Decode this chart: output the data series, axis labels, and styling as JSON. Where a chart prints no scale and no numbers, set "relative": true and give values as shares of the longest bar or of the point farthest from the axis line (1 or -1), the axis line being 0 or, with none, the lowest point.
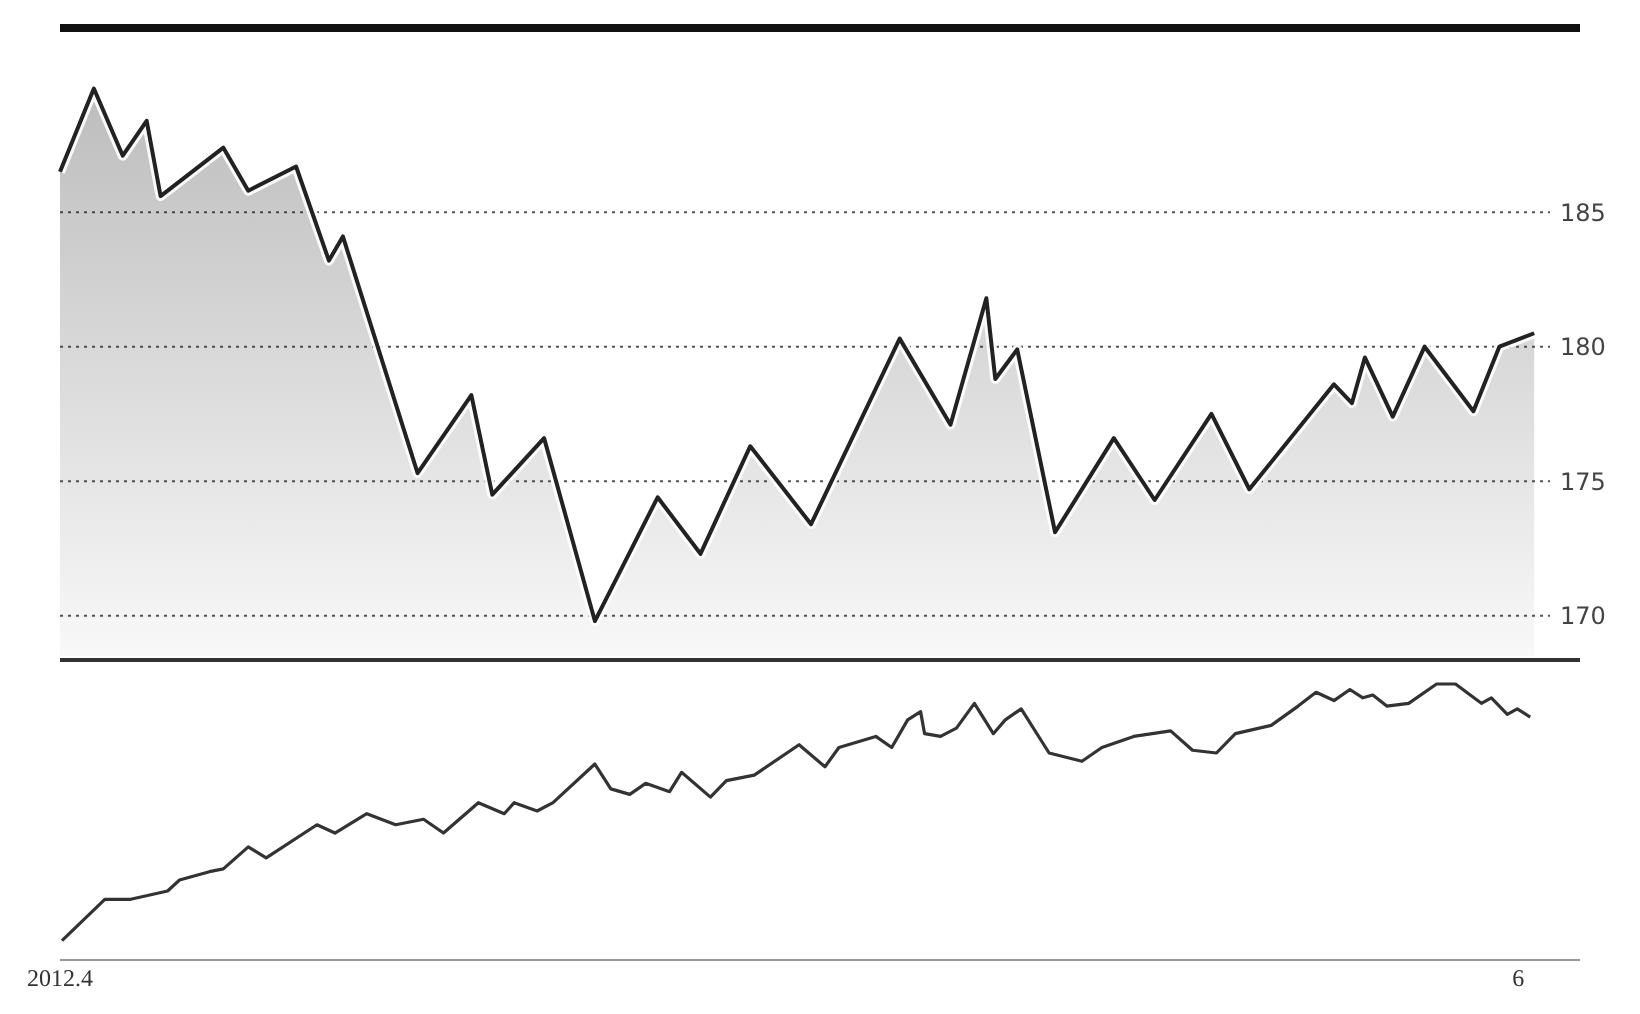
{
  "chart_data": [
    {
      "type": "area",
      "xlim": [
        "2012-04-01",
        "2012-06-03T14:00"
      ],
      "ylim": [
        168.5,
        191.7
      ],
      "yticks": [
        170,
        175,
        180,
        185
      ],
      "grid": "y",
      "tick_labels": "y",
      "x": [
        "2012-04-01T00:00",
        "2012-04-02T10:00",
        "2012-04-03T15:00",
        "2012-04-04T15:00",
        "2012-04-05T05:00",
        "2012-04-07T20:00",
        "2012-04-08T21:00",
        "2012-04-10T21:00",
        "2012-04-12T06:00",
        "2012-04-12T20:00",
        "2012-04-15T23:00",
        "2012-04-18T05:00",
        "2012-04-19T02:00",
        "2012-04-21T06:00",
        "2012-04-23T09:00",
        "2012-04-26T00:00",
        "2012-04-27T19:00",
        "2012-04-29T21:00",
        "2012-05-02T10:00",
        "2012-05-06T03:00",
        "2012-05-08T06:00",
        "2012-05-09T18:00",
        "2012-05-10T03:00",
        "2012-05-11T01:00",
        "2012-05-12T15:00",
        "2012-05-15T02:00",
        "2012-05-16T19:00",
        "2012-05-19T04:00",
        "2012-05-20T18:00",
        "2012-05-24T07:00",
        "2012-05-25T01:00",
        "2012-05-25T14:00",
        "2012-05-26T18:00",
        "2012-05-28T02:00",
        "2012-05-30T03:00",
        "2012-05-31T05:00",
        "2012-06-01T16:00"
      ],
      "series": [
        {
          "color": "#222222",
          "values": [
            186.5,
            189.6,
            187.1,
            188.4,
            185.6,
            187.4,
            185.8,
            186.7,
            183.2,
            184.1,
            175.3,
            178.2,
            174.5,
            176.6,
            169.8,
            174.4,
            172.3,
            176.3,
            173.4,
            180.3,
            177.1,
            181.8,
            178.8,
            179.9,
            173.1,
            176.6,
            174.3,
            177.5,
            174.7,
            178.6,
            177.9,
            179.6,
            177.4,
            180.0,
            177.6,
            180.0,
            180.5
          ]
        }
      ]
    },
    {
      "type": "line",
      "relative": true,
      "xlim": [
        "2012-04-01",
        "2012-06-03T14:00"
      ],
      "xticks": [
        {
          "value": "2012-04-01",
          "label": "2012.4"
        },
        {
          "value": "2012-06-01",
          "label": "6"
        }
      ],
      "tick_labels": "x",
      "x": [
        "2012-04-01T02:00",
        "2012-04-02T21:00",
        "2012-04-03T23:00",
        "2012-04-05T12:00",
        "2012-04-06T00:00",
        "2012-04-07T06:00",
        "2012-04-07T20:00",
        "2012-04-08T21:00",
        "2012-04-09T15:00",
        "2012-04-11T18:00",
        "2012-04-12T12:00",
        "2012-04-13T20:00",
        "2012-04-15T01:00",
        "2012-04-16T05:00",
        "2012-04-17T01:00",
        "2012-04-18T12:00",
        "2012-04-19T14:00",
        "2012-04-20T00:00",
        "2012-04-20T23:00",
        "2012-04-21T15:00",
        "2012-04-23T09:00",
        "2012-04-24T01:00",
        "2012-04-24T20:00",
        "2012-04-25T12:00",
        "2012-04-26T12:00",
        "2012-04-27T00:00",
        "2012-04-28T05:00",
        "2012-04-28T21:00",
        "2012-04-30T01:00",
        "2012-05-01T22:00",
        "2012-05-03T00:00",
        "2012-05-03T14:00",
        "2012-05-05T03:00",
        "2012-05-05T19:00",
        "2012-05-06T11:00",
        "2012-05-07T00:00",
        "2012-05-07T04:00",
        "2012-05-07T20:00",
        "2012-05-08T12:00",
        "2012-05-09T06:00",
        "2012-05-10T01:00",
        "2012-05-10T13:00",
        "2012-05-11T05:00",
        "2012-05-12T09:00",
        "2012-05-13T18:00",
        "2012-05-14T14:00",
        "2012-05-15T22:00",
        "2012-05-17T11:00",
        "2012-05-18T09:00",
        "2012-05-19T09:00",
        "2012-05-20T04:00",
        "2012-05-21T16:00",
        "2012-05-22T19:00",
        "2012-05-23T13:00",
        "2012-05-24T07:00",
        "2012-05-24T23:00",
        "2012-05-25T12:00",
        "2012-05-25T22:00",
        "2012-05-26T12:00",
        "2012-05-27T10:00",
        "2012-05-28T14:00",
        "2012-05-29T09:00",
        "2012-05-30T11:00",
        "2012-05-30T21:00",
        "2012-05-31T13:00",
        "2012-05-31T23:00",
        "2012-06-01T12:00"
      ],
      "series": [
        {
          "color": "#333333",
          "values": [
            0.07,
            0.22,
            0.22,
            0.25,
            0.29,
            0.32,
            0.33,
            0.41,
            0.37,
            0.49,
            0.46,
            0.53,
            0.49,
            0.51,
            0.46,
            0.57,
            0.53,
            0.57,
            0.54,
            0.57,
            0.71,
            0.62,
            0.6,
            0.64,
            0.61,
            0.68,
            0.59,
            0.65,
            0.67,
            0.78,
            0.7,
            0.77,
            0.81,
            0.77,
            0.87,
            0.9,
            0.82,
            0.81,
            0.84,
            0.93,
            0.82,
            0.87,
            0.91,
            0.75,
            0.72,
            0.77,
            0.81,
            0.83,
            0.76,
            0.75,
            0.82,
            0.85,
            0.92,
            0.97,
            0.94,
            0.98,
            0.95,
            0.96,
            0.92,
            0.93,
            1.0,
            1.0,
            0.93,
            0.95,
            0.89,
            0.91,
            0.88
          ]
        }
      ]
    }
  ]
}
